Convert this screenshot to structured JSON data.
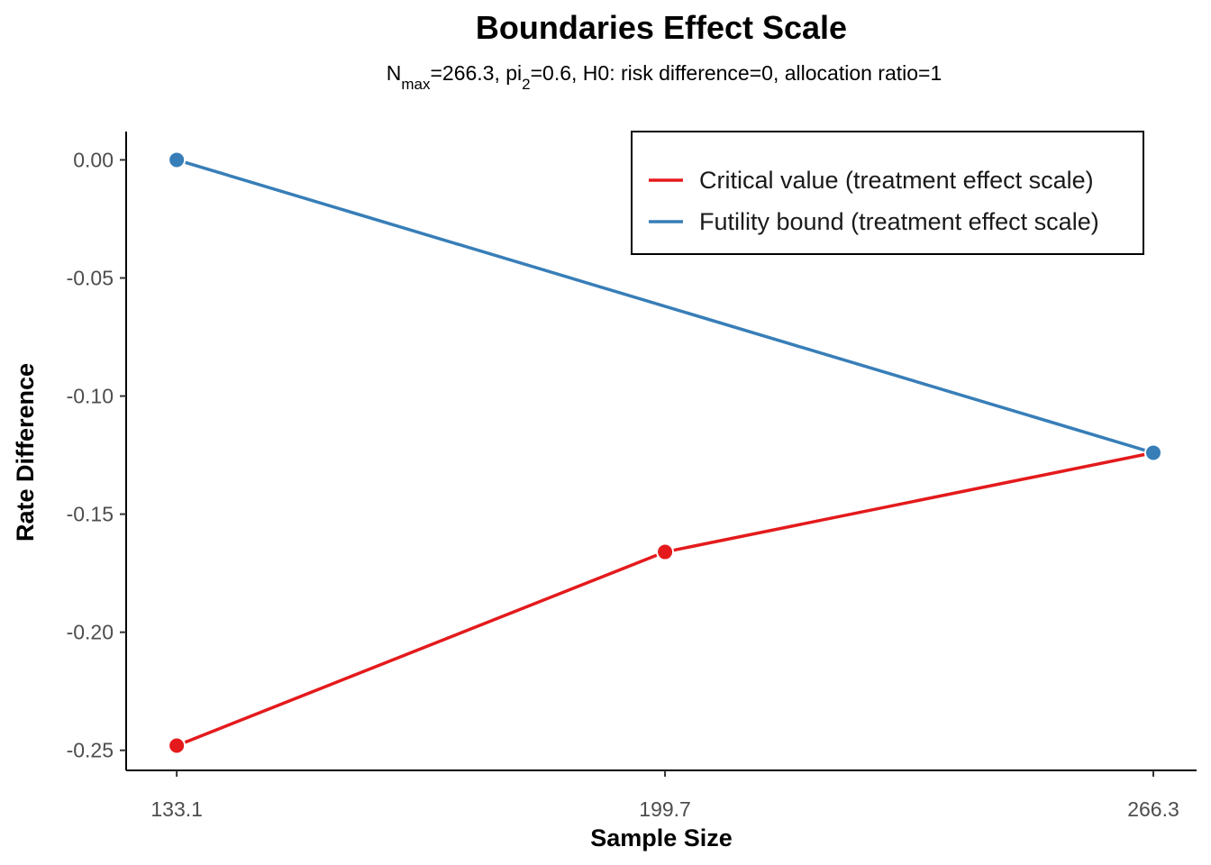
{
  "chart_data": {
    "type": "line",
    "title": "Boundaries Effect Scale",
    "subtitle": {
      "parts": [
        {
          "text": "N",
          "sub": false
        },
        {
          "text": "max",
          "sub": true
        },
        {
          "text": "=266.3, pi",
          "sub": false
        },
        {
          "text": "2",
          "sub": true
        },
        {
          "text": "=0.6, H0: risk difference=0, allocation ratio=1",
          "sub": false
        }
      ]
    },
    "xlabel": "Sample Size",
    "ylabel": "Rate Difference",
    "x": [
      133.1,
      199.7,
      266.3
    ],
    "x_ticks": [
      133.1,
      199.7,
      266.3
    ],
    "x_tick_labels": [
      "133.1",
      "199.7",
      "266.3"
    ],
    "y_ticks": [
      0,
      -0.05,
      -0.1,
      -0.15,
      -0.2,
      -0.25
    ],
    "y_tick_labels": [
      "0.00",
      "-0.05",
      "-0.10",
      "-0.15",
      "-0.20",
      "-0.25"
    ],
    "xlim": [
      126.2,
      272.2
    ],
    "ylim": [
      -0.2585,
      0.012
    ],
    "grid": false,
    "legend_position": "top-right",
    "series": [
      {
        "name": "Critical value (treatment effect scale)",
        "color": "#e41a1c",
        "x": [
          133.1,
          199.7,
          266.3
        ],
        "values": [
          -0.248,
          -0.166,
          -0.124
        ]
      },
      {
        "name": "Futility bound (treatment effect scale)",
        "color": "#377eb8",
        "x": [
          133.1,
          266.3
        ],
        "values": [
          0.0,
          -0.124
        ]
      }
    ]
  }
}
